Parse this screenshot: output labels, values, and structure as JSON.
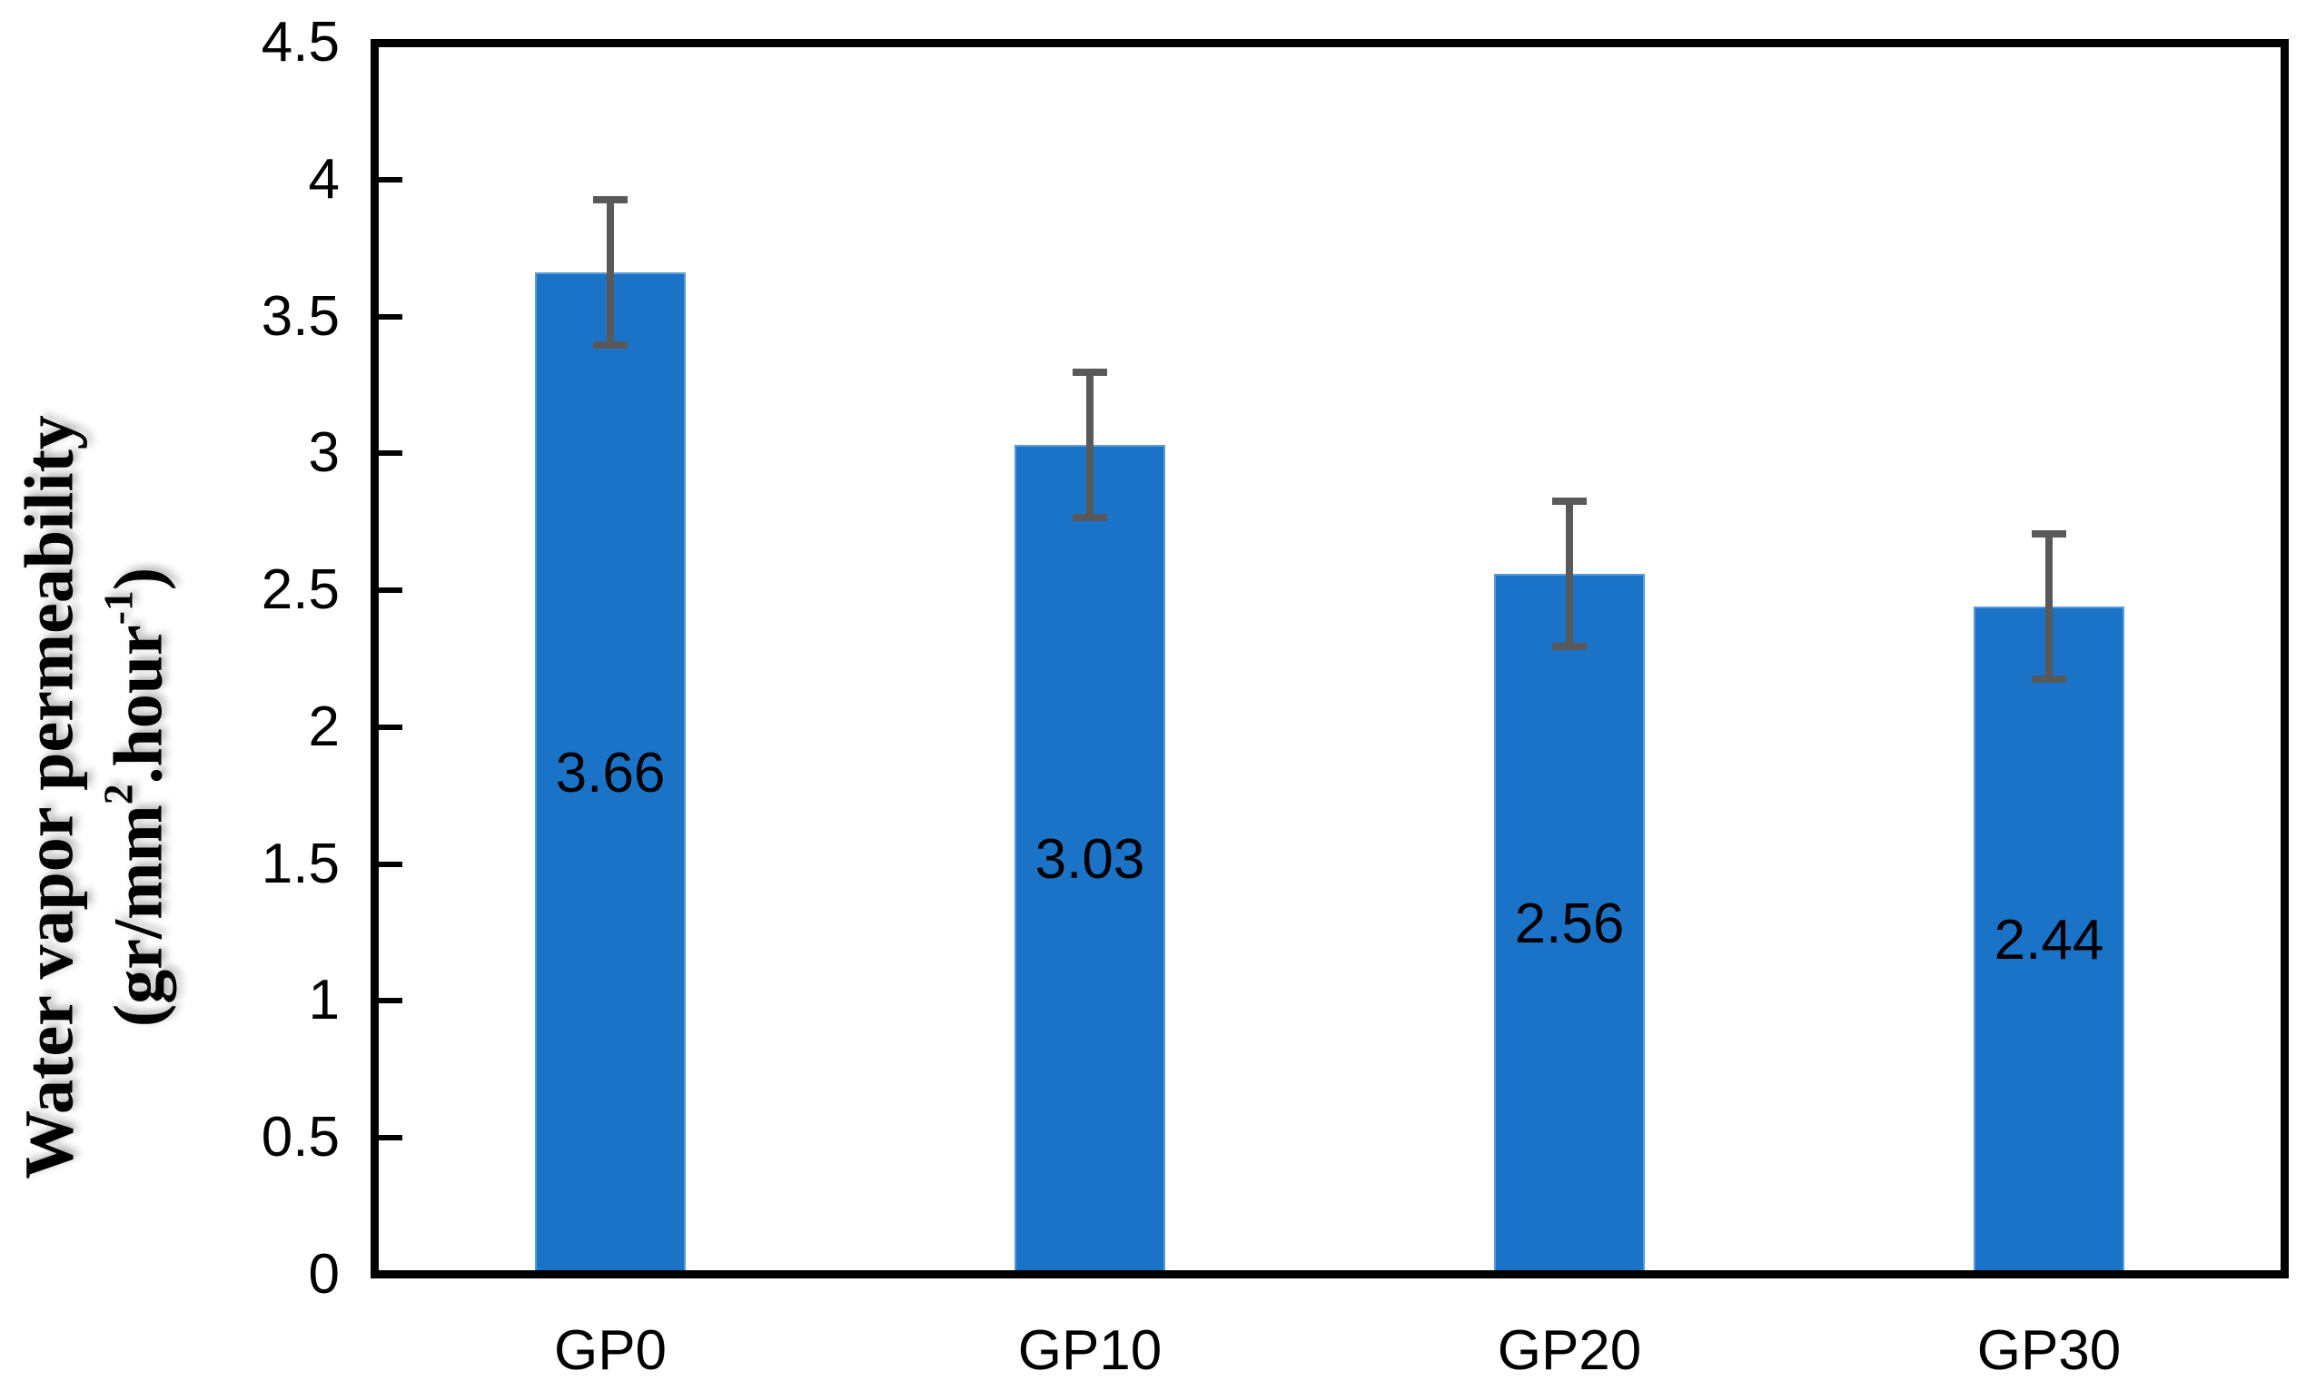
{
  "chart_data": {
    "type": "bar",
    "title": "",
    "categories": [
      "GP0",
      "GP10",
      "GP20",
      "GP30"
    ],
    "values": [
      3.66,
      3.03,
      2.56,
      2.44
    ],
    "error_bars": [
      0.28,
      0.28,
      0.28,
      0.28
    ],
    "data_labels": [
      "3.66",
      "3.03",
      "2.56",
      "2.44"
    ],
    "xlabel": "",
    "ylabel": "Water vapor permeability (gr/mm2.hour-1)",
    "ylabel_line1": "Water vapor permeability",
    "ylabel_line2": {
      "pre": "(gr/mm",
      "sup1": "2",
      "mid": ".hour",
      "sup2": "-1",
      "post": ")"
    },
    "ylim": [
      0,
      4.5
    ],
    "y_tick_step": 0.5,
    "y_ticks": [
      "0",
      "0.5",
      "1",
      "1.5",
      "2",
      "2.5",
      "3",
      "3.5",
      "4",
      "4.5"
    ],
    "grid": "off",
    "legend": "none",
    "colors": {
      "bar": "#1B73C8",
      "error_bar": "#595959",
      "axis": "#000000",
      "label_text": "#000000",
      "background": "#FFFFFF"
    }
  }
}
